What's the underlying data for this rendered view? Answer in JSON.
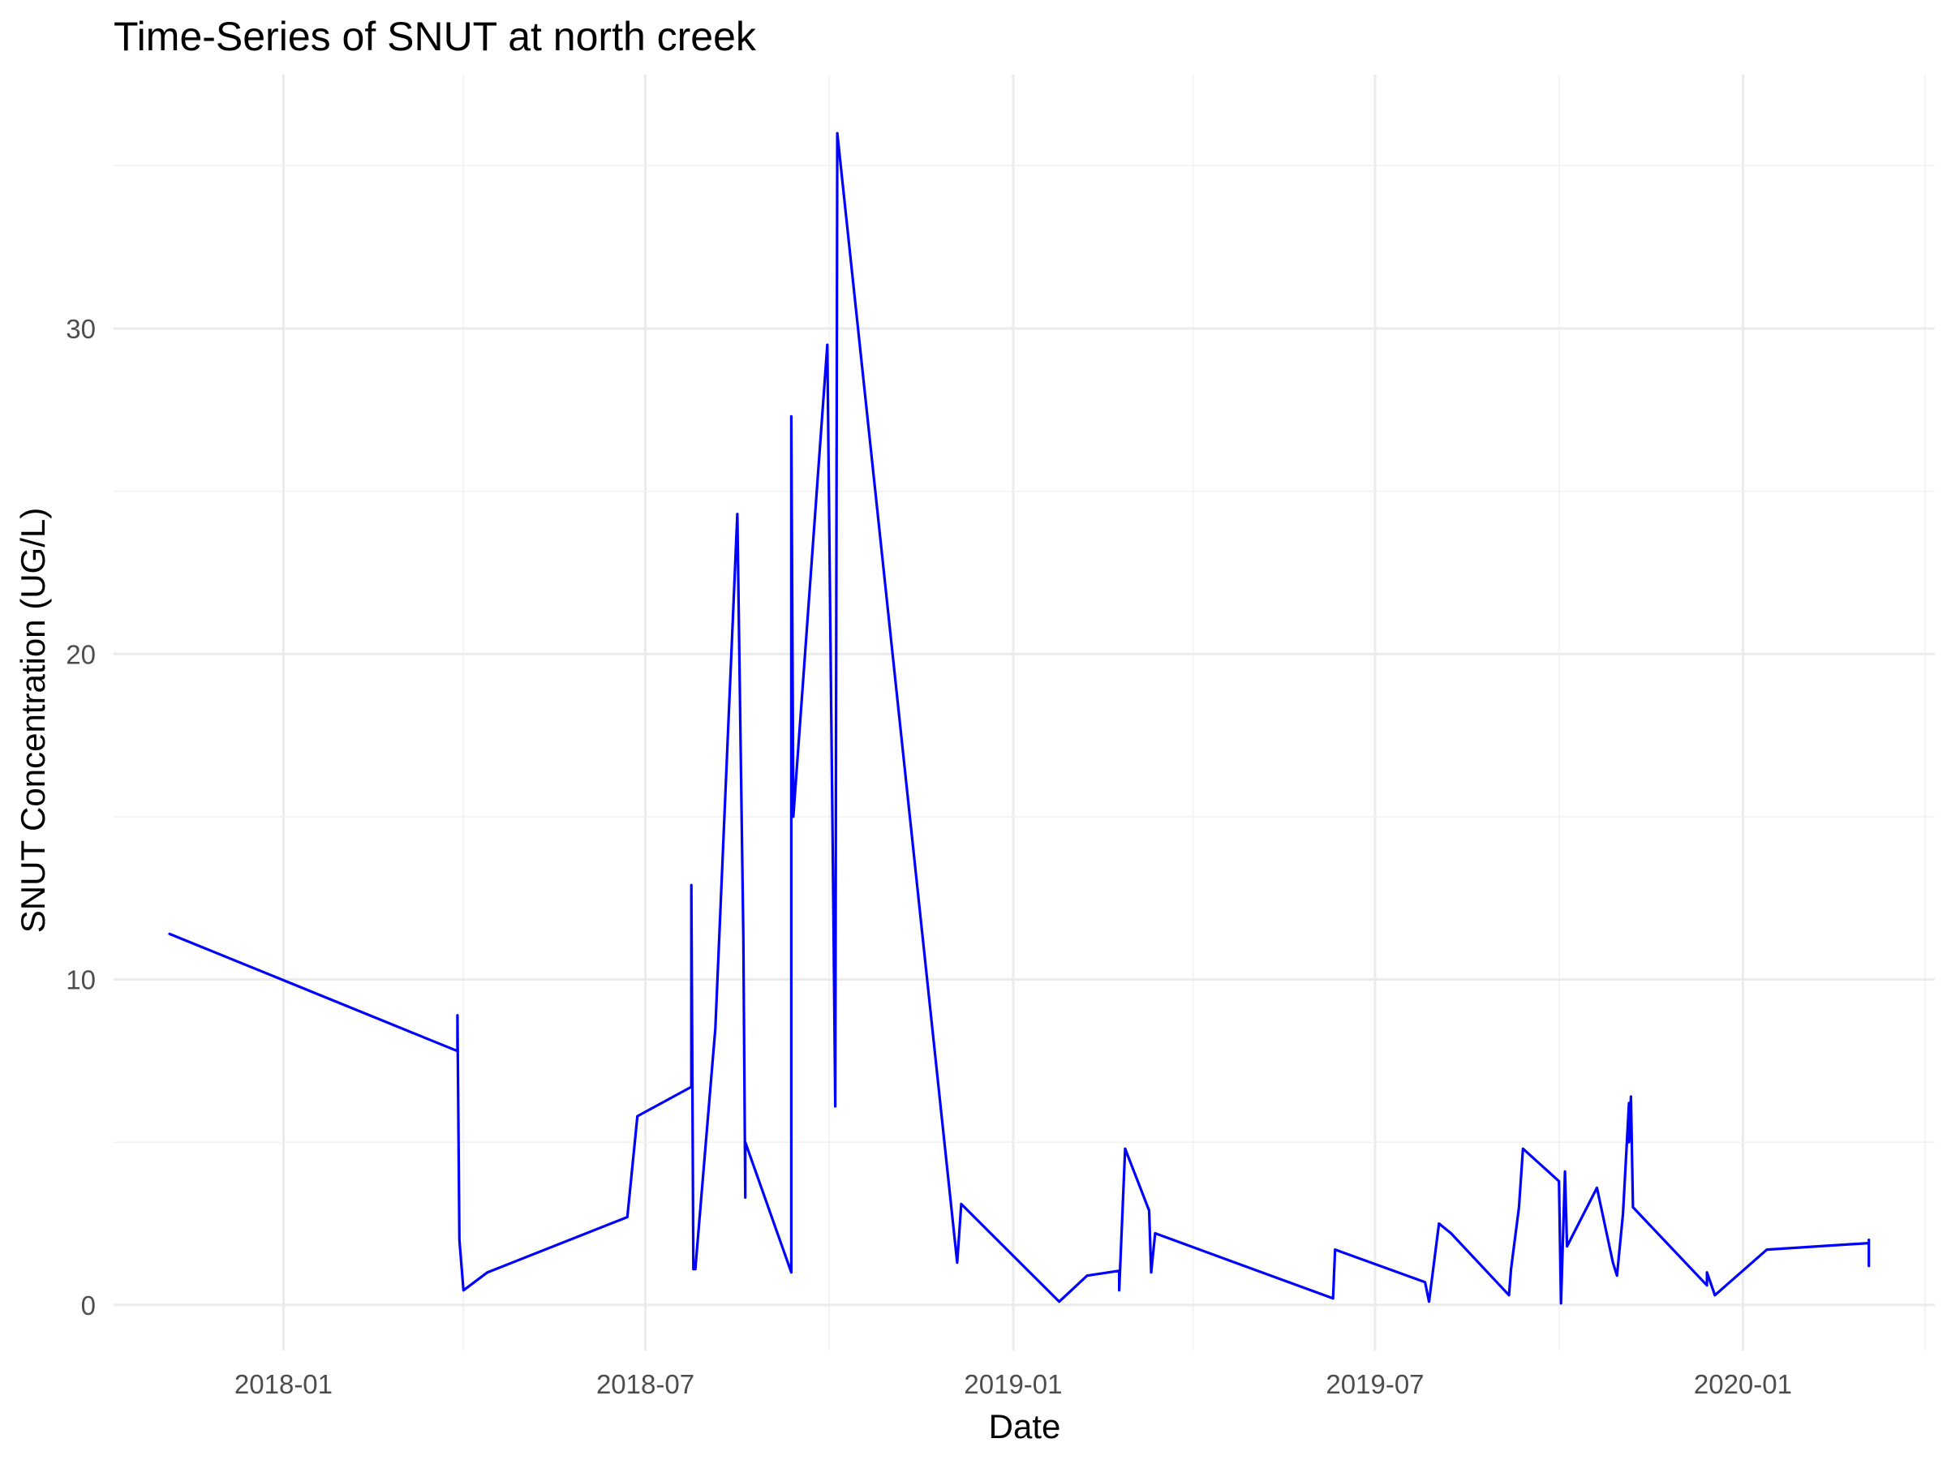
{
  "chart_data": {
    "type": "line",
    "title": "Time-Series of SNUT at north creek",
    "xlabel": "Date",
    "ylabel": "SNUT Concentration (UG/L)",
    "xlim": [
      "2017-10-08",
      "2020-04-06"
    ],
    "ylim": [
      -1.4,
      37.8
    ],
    "x_ticks": [
      "2018-01",
      "2018-07",
      "2019-01",
      "2019-07",
      "2020-01"
    ],
    "y_ticks": [
      0,
      10,
      20,
      30
    ],
    "grid": true,
    "colors": {
      "line": "#0000ff",
      "grid": "#ebebeb"
    },
    "series": [
      {
        "name": "SNUT",
        "points": [
          [
            "2017-11-05",
            11.4
          ],
          [
            "2018-03-29",
            7.8
          ],
          [
            "2018-03-29",
            8.9
          ],
          [
            "2018-03-30",
            2.0
          ],
          [
            "2018-04-01",
            0.45
          ],
          [
            "2018-04-13",
            1.0
          ],
          [
            "2018-06-22",
            2.7
          ],
          [
            "2018-06-27",
            5.8
          ],
          [
            "2018-07-24",
            6.7
          ],
          [
            "2018-07-24",
            12.9
          ],
          [
            "2018-07-25",
            1.1
          ],
          [
            "2018-07-26",
            1.1
          ],
          [
            "2018-08-05",
            8.5
          ],
          [
            "2018-08-16",
            24.3
          ],
          [
            "2018-08-19",
            11.3
          ],
          [
            "2018-08-20",
            3.3
          ],
          [
            "2018-08-20",
            5.0
          ],
          [
            "2018-09-12",
            1.0
          ],
          [
            "2018-09-12",
            27.3
          ],
          [
            "2018-09-13",
            15.0
          ],
          [
            "2018-09-30",
            29.5
          ],
          [
            "2018-10-03",
            12.3
          ],
          [
            "2018-10-04",
            6.1
          ],
          [
            "2018-10-05",
            36.0
          ],
          [
            "2018-12-04",
            1.3
          ],
          [
            "2018-12-06",
            3.1
          ],
          [
            "2019-01-24",
            0.1
          ],
          [
            "2019-02-07",
            0.9
          ],
          [
            "2019-02-23",
            1.05
          ],
          [
            "2019-02-23",
            0.45
          ],
          [
            "2019-02-26",
            4.8
          ],
          [
            "2019-03-10",
            2.9
          ],
          [
            "2019-03-11",
            1.0
          ],
          [
            "2019-03-13",
            2.2
          ],
          [
            "2019-06-10",
            0.2
          ],
          [
            "2019-06-11",
            1.7
          ],
          [
            "2019-07-26",
            0.7
          ],
          [
            "2019-07-28",
            0.1
          ],
          [
            "2019-08-02",
            2.5
          ],
          [
            "2019-08-08",
            2.2
          ],
          [
            "2019-09-06",
            0.3
          ],
          [
            "2019-09-07",
            1.1
          ],
          [
            "2019-09-11",
            3.0
          ],
          [
            "2019-09-13",
            4.8
          ],
          [
            "2019-10-01",
            3.8
          ],
          [
            "2019-10-02",
            0.05
          ],
          [
            "2019-10-04",
            4.1
          ],
          [
            "2019-10-05",
            1.8
          ],
          [
            "2019-10-20",
            3.6
          ],
          [
            "2019-10-28",
            1.3
          ],
          [
            "2019-10-30",
            0.9
          ],
          [
            "2019-11-02",
            2.8
          ],
          [
            "2019-11-05",
            6.2
          ],
          [
            "2019-11-05",
            5.0
          ],
          [
            "2019-11-06",
            6.4
          ],
          [
            "2019-11-07",
            3.0
          ],
          [
            "2019-12-14",
            0.6
          ],
          [
            "2019-12-14",
            1.0
          ],
          [
            "2019-12-18",
            0.3
          ],
          [
            "2020-01-13",
            1.7
          ],
          [
            "2020-03-04",
            1.9
          ],
          [
            "2020-03-04",
            1.2
          ],
          [
            "2020-03-04",
            2.0
          ]
        ]
      }
    ]
  }
}
